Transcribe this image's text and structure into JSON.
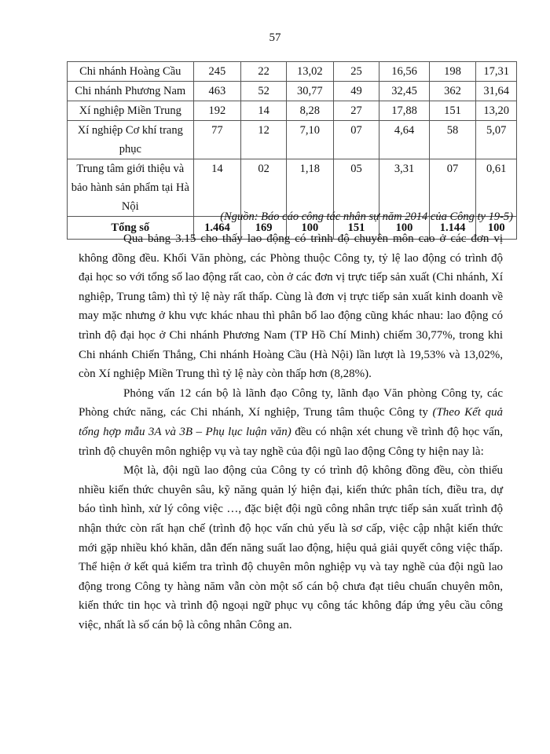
{
  "page_number": "57",
  "table": {
    "rows": [
      [
        "Chi nhánh Hoàng Cầu",
        "245",
        "22",
        "13,02",
        "25",
        "16,56",
        "198",
        "17,31"
      ],
      [
        "Chi nhánh Phương Nam",
        "463",
        "52",
        "30,77",
        "49",
        "32,45",
        "362",
        "31,64"
      ],
      [
        "Xí nghiệp Miền Trung",
        "192",
        "14",
        "8,28",
        "27",
        "17,88",
        "151",
        "13,20"
      ],
      [
        "Xí nghiệp Cơ khí trang phục",
        "77",
        "12",
        "7,10",
        "07",
        "4,64",
        "58",
        "5,07"
      ],
      [
        "Trung tâm giới thiệu và bảo hành sản phẩm tại Hà Nội",
        "14",
        "02",
        "1,18",
        "05",
        "3,31",
        "07",
        "0,61"
      ]
    ],
    "total": [
      "Tổng số",
      "1.464",
      "169",
      "100",
      "151",
      "100",
      "1.144",
      "100"
    ]
  },
  "source": "(Nguồn: Báo cáo công tác nhân sự năm 2014 của Công ty 19-5)",
  "paragraphs": {
    "p1": "Qua bảng 3.15 cho thấy lao động có trình độ chuyên môn cao ở các đơn vị không đồng đều. Khối Văn phòng, các Phòng thuộc Công ty, tỷ lệ lao động có trình độ đại học so với tổng số lao động rất cao, còn ở các đơn vị trực tiếp sản xuất (Chi nhánh, Xí nghiệp, Trung tâm) thì tỷ lệ này rất thấp. Cùng là đơn vị trực tiếp sản xuất kinh doanh về may mặc nhưng ở khu vực khác nhau thì phân bổ lao động cũng khác nhau: lao động có trình độ đại học ở Chi nhánh Phương Nam (TP Hồ Chí Minh) chiếm 30,77%, trong khi Chi nhánh Chiến Thắng, Chi nhánh Hoàng Cầu (Hà Nội) lần lượt là 19,53% và 13,02%, còn Xí nghiệp Miền Trung thì tỷ lệ này còn thấp hơn (8,28%).",
    "p2_a": "Phỏng vấn 12 cán bộ là lãnh đạo Công ty, lãnh đạo Văn phòng Công ty, các Phòng chức năng, các Chi nhánh, Xí nghiệp, Trung tâm thuộc Công ty ",
    "p2_b": "(Theo Kết quả tổng hợp mẫu 3A và 3B – Phụ lục luận văn)",
    "p2_c": " đều có nhận xét chung về trình độ học vấn, trình độ chuyên môn nghiệp vụ và tay nghề của đội ngũ lao động Công ty hiện nay là:",
    "p3": "Một là, đội ngũ lao động của Công ty có trình độ không đồng đều, còn thiếu nhiều kiến thức chuyên sâu, kỹ năng quản lý hiện đại, kiến thức phân tích, điều tra, dự báo tình hình, xử lý công việc …, đặc biệt đội ngũ công nhân trực tiếp sản xuất trình độ nhận thức còn rất hạn chế (trình độ học vấn chủ yếu là sơ cấp, việc cập nhật kiến thức mới gặp nhiều khó khăn, dẫn đến năng suất lao động, hiệu quả giải quyết công việc thấp. Thể hiện ở kết quả kiểm tra trình độ chuyên môn nghiệp vụ và tay nghề của đội ngũ lao động trong Công ty hàng năm vẫn còn một số cán bộ chưa đạt tiêu chuẩn chuyên môn, kiến thức tin học và trình độ ngoại ngữ phục vụ công tác không đáp ứng yêu cầu công việc, nhất là số cán bộ là công nhân Công an."
  }
}
